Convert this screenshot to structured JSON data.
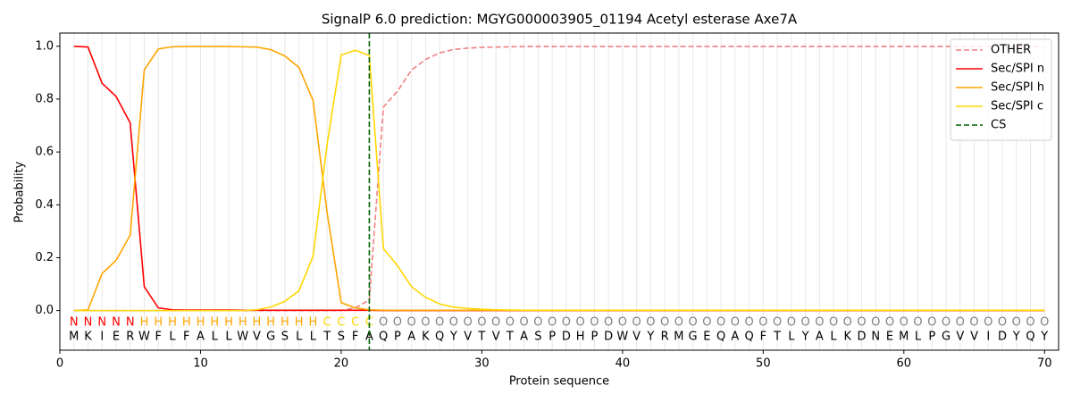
{
  "chart_data": {
    "type": "line",
    "title": "SignalP 6.0 prediction: MGYG000003905_01194 Acetyl esterase Axe7A",
    "xlabel": "Protein sequence",
    "ylabel": "Probability",
    "x": [
      1,
      2,
      3,
      4,
      5,
      6,
      7,
      8,
      9,
      10,
      11,
      12,
      13,
      14,
      15,
      16,
      17,
      18,
      19,
      20,
      21,
      22,
      23,
      24,
      25,
      26,
      27,
      28,
      29,
      30,
      31,
      32,
      33,
      34,
      35,
      36,
      37,
      38,
      39,
      40,
      41,
      42,
      43,
      44,
      45,
      46,
      47,
      48,
      49,
      50,
      51,
      52,
      53,
      54,
      55,
      56,
      57,
      58,
      59,
      60,
      61,
      62,
      63,
      64,
      65,
      66,
      67,
      68,
      69,
      70
    ],
    "labels": [
      "N",
      "N",
      "N",
      "N",
      "N",
      "H",
      "H",
      "H",
      "H",
      "H",
      "H",
      "H",
      "H",
      "H",
      "H",
      "H",
      "H",
      "H",
      "C",
      "C",
      "C",
      "C",
      "O",
      "O",
      "O",
      "O",
      "O",
      "O",
      "O",
      "O",
      "O",
      "O",
      "O",
      "O",
      "O",
      "O",
      "O",
      "O",
      "O",
      "O",
      "O",
      "O",
      "O",
      "O",
      "O",
      "O",
      "O",
      "O",
      "O",
      "O",
      "O",
      "O",
      "O",
      "O",
      "O",
      "O",
      "O",
      "O",
      "O",
      "O",
      "O",
      "O",
      "O",
      "O",
      "O",
      "O",
      "O",
      "O",
      "O",
      "O"
    ],
    "label_colors": {
      "N": "#ff0000",
      "H": "#ffa500",
      "C": "#ffd700",
      "O": "#808080"
    },
    "sequence": [
      "M",
      "K",
      "I",
      "E",
      "R",
      "W",
      "F",
      "L",
      "F",
      "A",
      "L",
      "L",
      "W",
      "V",
      "G",
      "S",
      "L",
      "L",
      "T",
      "S",
      "F",
      "A",
      "Q",
      "P",
      "A",
      "K",
      "Q",
      "Y",
      "V",
      "T",
      "V",
      "T",
      "A",
      "S",
      "P",
      "D",
      "H",
      "P",
      "D",
      "W",
      "V",
      "Y",
      "R",
      "M",
      "G",
      "E",
      "Q",
      "A",
      "Q",
      "F",
      "T",
      "L",
      "Y",
      "A",
      "L",
      "K",
      "D",
      "N",
      "E",
      "M",
      "L",
      "P",
      "G",
      "V",
      "V",
      "I",
      "D",
      "Y",
      "Q",
      "Y"
    ],
    "series": [
      {
        "name": "OTHER",
        "color": "#f08080",
        "dashed": true,
        "values": [
          0,
          0,
          0,
          0,
          0,
          0,
          0,
          0,
          0,
          0,
          0,
          0,
          0,
          0,
          0,
          0,
          0,
          0,
          0,
          0,
          0.01,
          0.04,
          0.77,
          0.83,
          0.91,
          0.95,
          0.975,
          0.988,
          0.993,
          0.996,
          0.997,
          0.998,
          0.999,
          0.999,
          0.999,
          0.999,
          0.999,
          0.999,
          0.999,
          0.999,
          0.999,
          0.999,
          0.999,
          0.999,
          0.999,
          0.999,
          0.999,
          0.999,
          0.999,
          0.999,
          0.999,
          0.999,
          0.999,
          0.999,
          0.999,
          0.999,
          0.999,
          0.999,
          0.999,
          0.999,
          0.999,
          0.999,
          0.999,
          0.999,
          0.999,
          0.999,
          0.999,
          0.999,
          0.999,
          0.999
        ]
      },
      {
        "name": "Sec/SPI n",
        "color": "#ff0000",
        "dashed": false,
        "values": [
          1.0,
          0.997,
          0.86,
          0.81,
          0.71,
          0.09,
          0.01,
          0.003,
          0.002,
          0.002,
          0.002,
          0.002,
          0.001,
          0.001,
          0.001,
          0.001,
          0.001,
          0.001,
          0.001,
          0.001,
          0.001,
          0.001,
          0,
          0,
          0,
          0,
          0,
          0,
          0,
          0,
          0,
          0,
          0,
          0,
          0,
          0,
          0,
          0,
          0,
          0,
          0,
          0,
          0,
          0,
          0,
          0,
          0,
          0,
          0,
          0,
          0,
          0,
          0,
          0,
          0,
          0,
          0,
          0,
          0,
          0,
          0,
          0,
          0,
          0,
          0,
          0,
          0,
          0,
          0,
          0
        ]
      },
      {
        "name": "Sec/SPI h",
        "color": "#ffa500",
        "dashed": false,
        "values": [
          0,
          0.003,
          0.14,
          0.19,
          0.285,
          0.91,
          0.99,
          0.998,
          0.999,
          0.999,
          0.999,
          0.999,
          0.998,
          0.997,
          0.987,
          0.963,
          0.92,
          0.795,
          0.37,
          0.03,
          0.01,
          0.003,
          0.001,
          0.001,
          0.001,
          0.001,
          0.001,
          0.001,
          0.001,
          0.001,
          0.001,
          0.001,
          0.001,
          0.001,
          0.001,
          0.001,
          0.001,
          0.001,
          0.001,
          0.001,
          0.001,
          0.001,
          0.001,
          0.001,
          0.001,
          0.001,
          0.001,
          0.001,
          0.001,
          0.001,
          0.001,
          0.001,
          0.001,
          0.001,
          0.001,
          0.001,
          0.001,
          0.001,
          0.001,
          0.001,
          0.001,
          0.001,
          0.001,
          0.001,
          0.001,
          0.001,
          0.001,
          0.001,
          0.001,
          0.001
        ]
      },
      {
        "name": "Sec/SPI c",
        "color": "#ffd700",
        "dashed": false,
        "values": [
          0,
          0,
          0,
          0,
          0,
          0,
          0,
          0,
          0,
          0,
          0,
          0,
          0,
          0.003,
          0.013,
          0.035,
          0.075,
          0.205,
          0.63,
          0.967,
          0.985,
          0.965,
          0.235,
          0.17,
          0.09,
          0.05,
          0.025,
          0.013,
          0.008,
          0.005,
          0.003,
          0.002,
          0.001,
          0.001,
          0.001,
          0.001,
          0.001,
          0.001,
          0.001,
          0.001,
          0.001,
          0.001,
          0.001,
          0.001,
          0.001,
          0.001,
          0.001,
          0.001,
          0.001,
          0.001,
          0.001,
          0.001,
          0.001,
          0.001,
          0.001,
          0.001,
          0.001,
          0.001,
          0.001,
          0.001,
          0.001,
          0.001,
          0.001,
          0.001,
          0.001,
          0.001,
          0.001,
          0.001,
          0.001,
          0.001
        ]
      }
    ],
    "cs": {
      "name": "CS",
      "x": 22,
      "color": "#006400"
    },
    "xlim": [
      0,
      71
    ],
    "ylim": [
      -0.15,
      1.05
    ],
    "xticks": [
      0,
      10,
      20,
      30,
      40,
      50,
      60,
      70
    ],
    "yticks": [
      {
        "value": 0,
        "label": "0.0"
      },
      {
        "value": 0.2,
        "label": "0.2"
      },
      {
        "value": 0.4,
        "label": "0.4"
      },
      {
        "value": 0.6,
        "label": "0.6"
      },
      {
        "value": 0.8,
        "label": "0.8"
      },
      {
        "value": 1,
        "label": "1.0"
      }
    ],
    "legend": "upper right"
  }
}
